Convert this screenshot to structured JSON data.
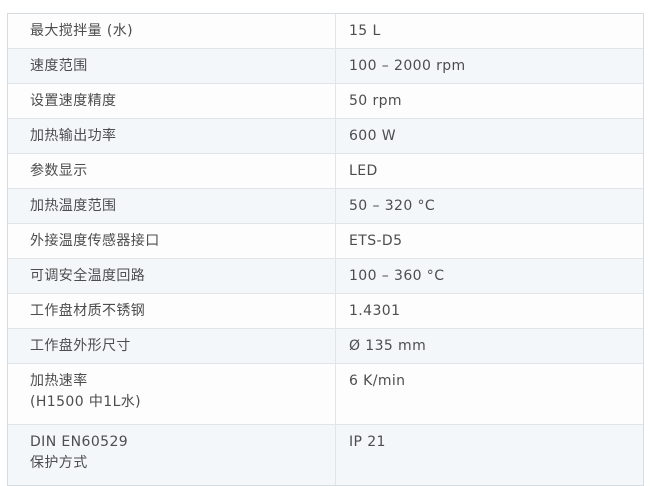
{
  "table": {
    "rows": [
      {
        "label": "最大搅拌量 (水)",
        "value": "15 L"
      },
      {
        "label": "速度范围",
        "value": "100 – 2000 rpm"
      },
      {
        "label": "设置速度精度",
        "value": "50 rpm"
      },
      {
        "label": "加热输出功率",
        "value": "600 W"
      },
      {
        "label": "参数显示",
        "value": "LED"
      },
      {
        "label": "加热温度范围",
        "value": "50 – 320 °C"
      },
      {
        "label": "外接温度传感器接口",
        "value": "ETS-D5"
      },
      {
        "label": "可调安全温度回路",
        "value": "100 – 360 °C"
      },
      {
        "label": "工作盘材质不锈钢",
        "value": "1.4301"
      },
      {
        "label": "工作盘外形尺寸",
        "value": "Ø 135 mm"
      },
      {
        "label": "加热速率",
        "label2": "(H1500 中1L水)",
        "value": "6 K/min"
      },
      {
        "label": "DIN EN60529",
        "label2": "保护方式",
        "value": "IP 21"
      }
    ]
  },
  "colors": {
    "text_color": "#4d4d4d",
    "row_bg": "#fdfdfd",
    "row_alt_bg": "#f3f7fa",
    "border_inner": "#e1e5e9",
    "border_outer": "#d7dce1",
    "page_bg": "#ffffff"
  }
}
